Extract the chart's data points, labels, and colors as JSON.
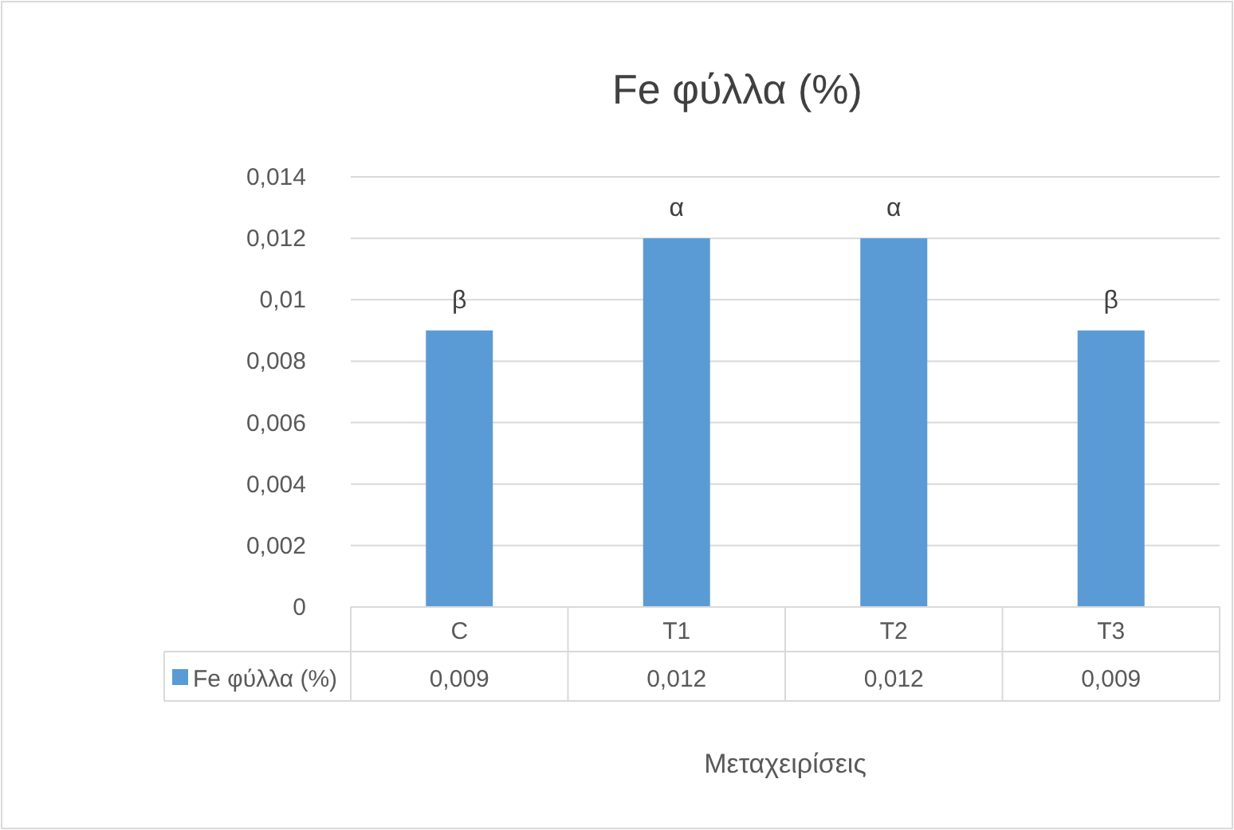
{
  "chart_data": {
    "type": "bar",
    "title": "Fe φύλλα (%)",
    "xlabel": "Μεταχειρίσεις",
    "categories": [
      "C",
      "T1",
      "T2",
      "T3"
    ],
    "series": [
      {
        "name": "Fe φύλλα (%)",
        "color": "#5b9bd5",
        "values": [
          0.009,
          0.012,
          0.012,
          0.009
        ],
        "value_labels": [
          "0,009",
          "0,012",
          "0,012",
          "0,009"
        ]
      }
    ],
    "ylim": [
      0,
      0.014
    ],
    "yticks": [
      0,
      {
        "value": 0.002,
        "label": "0,002"
      },
      {
        "value": 0.004,
        "label": "0,004"
      },
      {
        "value": 0.006,
        "label": "0,006"
      },
      {
        "value": 0.008,
        "label": "0,008"
      },
      {
        "value": 0.01,
        "label": "0,01"
      },
      {
        "value": 0.012,
        "label": "0,012"
      },
      {
        "value": 0.014,
        "label": "0,014"
      }
    ],
    "grid": "y",
    "legend": "bottom",
    "annotations": [
      {
        "text": "β",
        "x": "C",
        "y": 0.009
      },
      {
        "text": "α",
        "x": "T1",
        "y": 0.012
      },
      {
        "text": "α",
        "x": "T2",
        "y": 0.012
      },
      {
        "text": "β",
        "x": "T3",
        "y": 0.009
      }
    ]
  }
}
